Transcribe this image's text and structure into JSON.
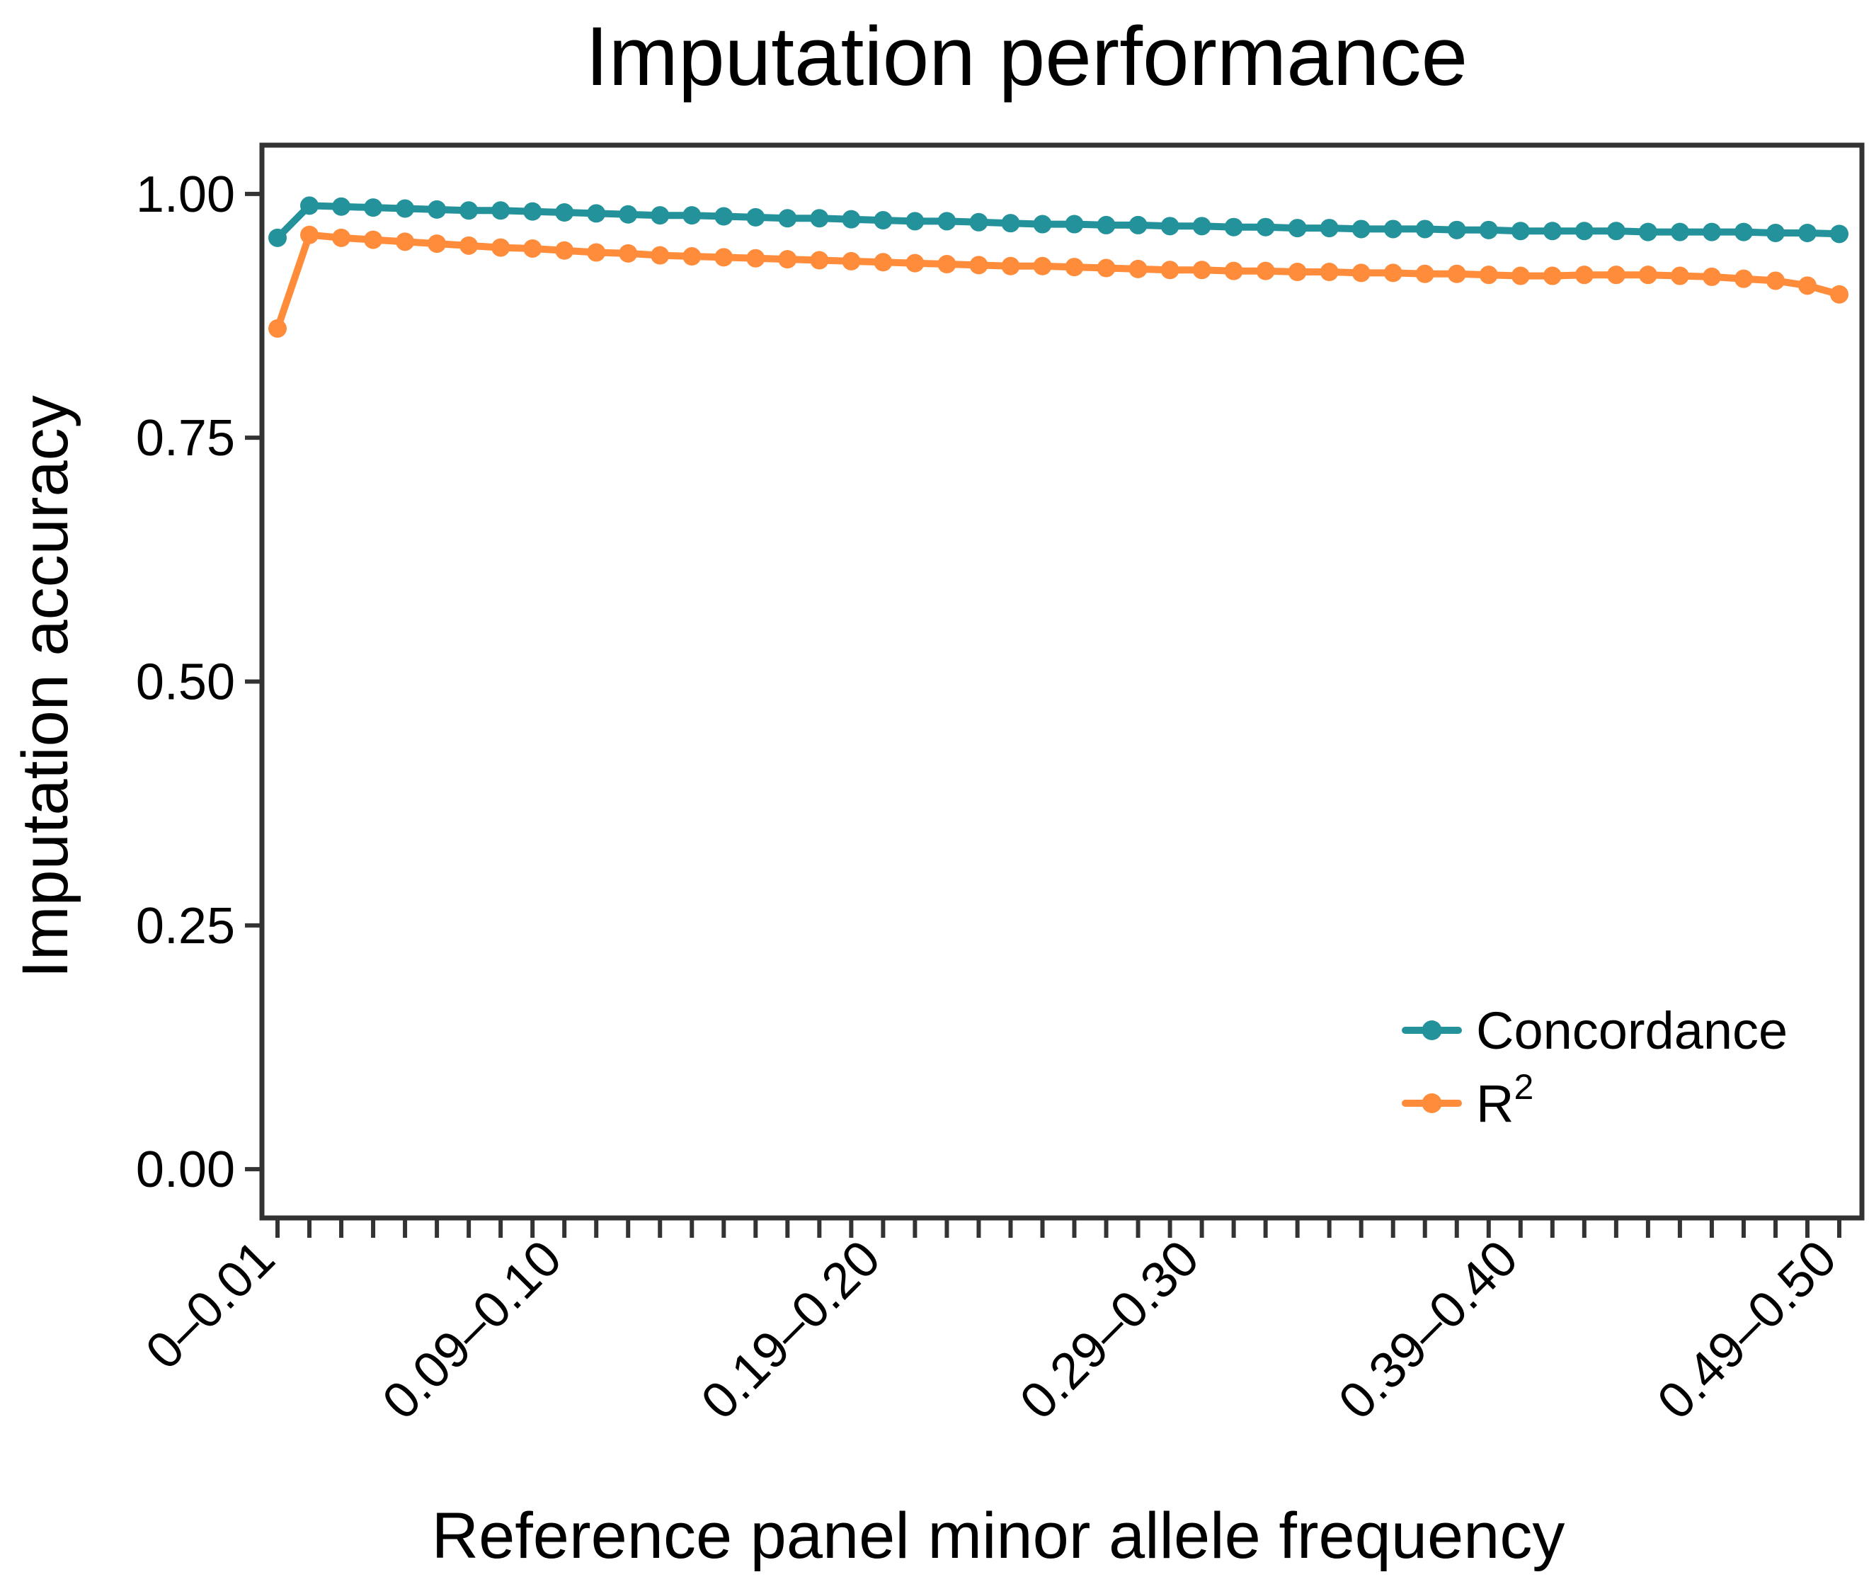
{
  "chart_data": {
    "type": "line",
    "title": "Imputation performance",
    "xlabel": "Reference panel minor allele frequency",
    "ylabel": "Imputation accuracy",
    "ylim": [
      -0.05,
      1.05
    ],
    "yticks": [
      0.0,
      0.25,
      0.5,
      0.75,
      1.0
    ],
    "ytick_labels": [
      "0.00",
      "0.25",
      "0.50",
      "0.75",
      "1.00"
    ],
    "x_count": 50,
    "x_tick_labels": [
      {
        "index": 0,
        "label": "0–0.01"
      },
      {
        "index": 9,
        "label": "0.09–0.10"
      },
      {
        "index": 19,
        "label": "0.19–0.20"
      },
      {
        "index": 29,
        "label": "0.29–0.30"
      },
      {
        "index": 39,
        "label": "0.39–0.40"
      },
      {
        "index": 49,
        "label": "0.49–0.50"
      }
    ],
    "legend_position": "bottom-right",
    "series": [
      {
        "name": "Concordance",
        "color": "#23929A",
        "values": [
          0.955,
          0.988,
          0.987,
          0.986,
          0.985,
          0.984,
          0.983,
          0.983,
          0.982,
          0.981,
          0.98,
          0.979,
          0.978,
          0.978,
          0.977,
          0.976,
          0.975,
          0.975,
          0.974,
          0.973,
          0.972,
          0.972,
          0.971,
          0.97,
          0.969,
          0.969,
          0.968,
          0.968,
          0.967,
          0.967,
          0.966,
          0.966,
          0.965,
          0.965,
          0.964,
          0.964,
          0.964,
          0.963,
          0.963,
          0.962,
          0.962,
          0.962,
          0.962,
          0.961,
          0.961,
          0.961,
          0.961,
          0.96,
          0.96,
          0.959
        ]
      },
      {
        "name": "R²",
        "label_base": "R",
        "label_sup": "2",
        "color": "#FF8C3B",
        "values": [
          0.862,
          0.958,
          0.955,
          0.953,
          0.951,
          0.949,
          0.947,
          0.945,
          0.944,
          0.942,
          0.94,
          0.939,
          0.937,
          0.936,
          0.935,
          0.934,
          0.933,
          0.932,
          0.931,
          0.93,
          0.929,
          0.928,
          0.927,
          0.926,
          0.926,
          0.925,
          0.924,
          0.923,
          0.922,
          0.922,
          0.921,
          0.921,
          0.92,
          0.92,
          0.919,
          0.919,
          0.918,
          0.918,
          0.917,
          0.916,
          0.916,
          0.917,
          0.917,
          0.917,
          0.916,
          0.915,
          0.913,
          0.911,
          0.906,
          0.897
        ]
      }
    ]
  }
}
